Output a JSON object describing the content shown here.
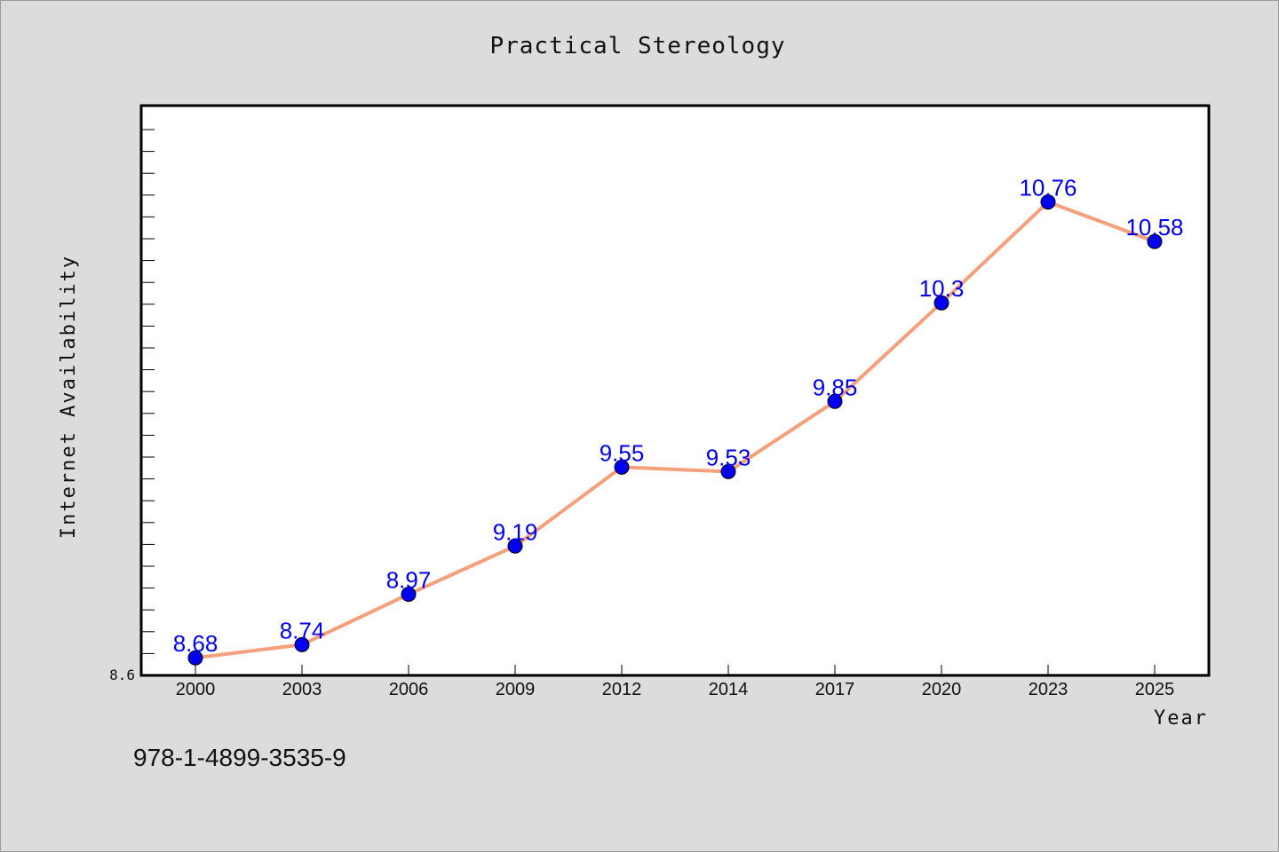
{
  "chart_data": {
    "type": "line",
    "title": "Practical Stereology",
    "xlabel": "Year",
    "ylabel": "Internet Availability",
    "categories": [
      "2000",
      "2003",
      "2006",
      "2009",
      "2012",
      "2014",
      "2017",
      "2020",
      "2023",
      "2025"
    ],
    "series": [
      {
        "values": [
          8.68,
          8.74,
          8.97,
          9.19,
          9.55,
          9.53,
          9.85,
          10.3,
          10.76,
          10.58
        ],
        "line_color": "#f4a07a",
        "marker_color": "#0000ee"
      }
    ],
    "ylim": [
      8.6,
      11.2
    ],
    "ytick_labels": [
      "8.6"
    ],
    "data_labels": [
      "8.68",
      "8.74",
      "8.97",
      "9.19",
      "9.55",
      "9.53",
      "9.85",
      "10.3",
      "10.76",
      "10.58"
    ],
    "grid": false,
    "legend": "none"
  },
  "footer": {
    "isbn": "978-1-4899-3535-9"
  }
}
